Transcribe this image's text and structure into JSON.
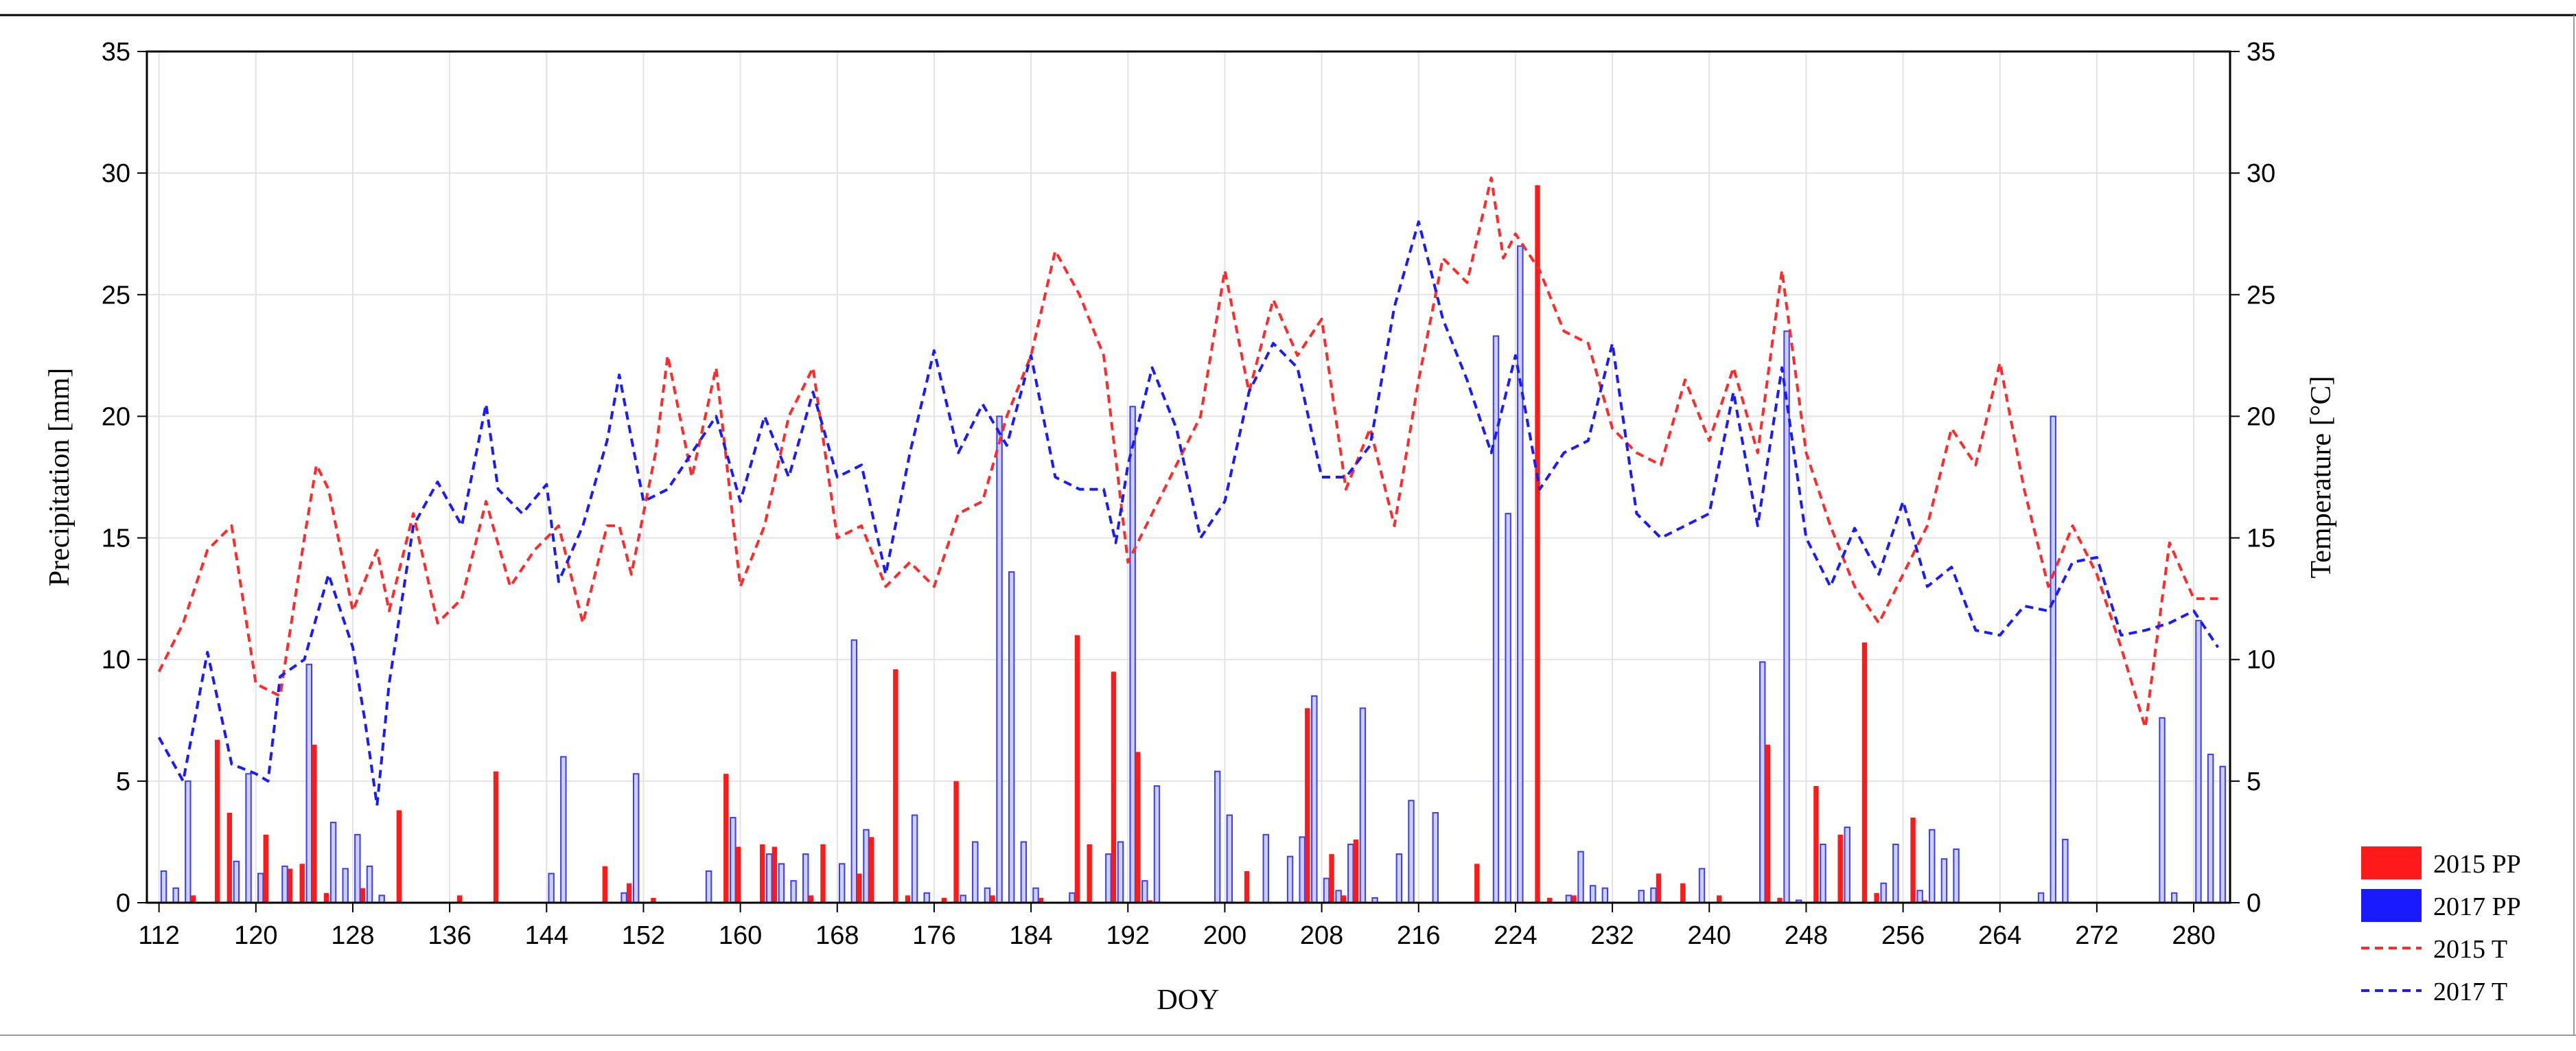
{
  "chart_data": {
    "type": "bar+line",
    "title": "",
    "xlabel": "DOY",
    "ylabel": "Precipitation [mm]",
    "y2label": "Temperature  [°C]",
    "xlim": [
      111,
      283
    ],
    "ylim": [
      0,
      35
    ],
    "y2lim": [
      0,
      35
    ],
    "xticks": [
      112,
      120,
      128,
      136,
      144,
      152,
      160,
      168,
      176,
      184,
      192,
      200,
      208,
      216,
      224,
      232,
      240,
      248,
      256,
      264,
      272,
      280
    ],
    "yticks": [
      0,
      5,
      10,
      15,
      20,
      25,
      30,
      35
    ],
    "grid": true,
    "legend_position": "bottom-right outside",
    "colors": {
      "pp2015": "#ff1a1a",
      "pp2017_fill": "#cdd0ff",
      "pp2017_stroke": "#3b3bff",
      "t2015": "#ff2a2a",
      "t2017": "#1a1aff",
      "grid": "#e3e3e3"
    },
    "series": [
      {
        "name": "2015 PP",
        "kind": "bar",
        "x": [
          115,
          117,
          118,
          121,
          123,
          124,
          125,
          126,
          129,
          132,
          137,
          140,
          149,
          151,
          153,
          159,
          160,
          162,
          163,
          166,
          167,
          170,
          171,
          173,
          174,
          177,
          178,
          181,
          185,
          188,
          189,
          191,
          193,
          194,
          202,
          207,
          209,
          210,
          211,
          221,
          226,
          227,
          229,
          236,
          238,
          241,
          245,
          246,
          249,
          251,
          253,
          254,
          257,
          258
        ],
        "values": [
          0.3,
          6.7,
          3.7,
          2.8,
          1.4,
          1.6,
          6.5,
          0.4,
          0.6,
          3.8,
          0.3,
          5.4,
          1.5,
          0.8,
          0.2,
          5.3,
          2.3,
          2.4,
          2.3,
          0.3,
          2.4,
          1.2,
          2.7,
          9.6,
          0.3,
          0.2,
          5.0,
          0.3,
          0.2,
          11.0,
          2.4,
          9.5,
          6.2,
          0.1,
          1.3,
          8.0,
          2.0,
          0.3,
          2.6,
          1.6,
          29.5,
          0.2,
          0.3,
          1.2,
          0.8,
          0.3,
          6.5,
          0.2,
          4.8,
          2.8,
          10.7,
          0.4,
          3.5,
          0.1
        ]
      },
      {
        "name": "2017 PP",
        "kind": "bar",
        "x": [
          112,
          113,
          114,
          118,
          119,
          120,
          122,
          124,
          126,
          127,
          128,
          129,
          130,
          144,
          145,
          150,
          151,
          157,
          159,
          162,
          163,
          164,
          165,
          168,
          169,
          170,
          174,
          175,
          178,
          179,
          180,
          181,
          182,
          183,
          184,
          187,
          190,
          191,
          192,
          193,
          194,
          199,
          200,
          203,
          205,
          206,
          207,
          208,
          209,
          210,
          211,
          212,
          214,
          215,
          217,
          222,
          223,
          224,
          228,
          229,
          230,
          231,
          234,
          235,
          239,
          244,
          246,
          247,
          249,
          251,
          254,
          255,
          257,
          258,
          259,
          260,
          267,
          268,
          269,
          277,
          278,
          280,
          281,
          282
        ],
        "values": [
          1.3,
          0.6,
          5.0,
          1.7,
          5.3,
          1.2,
          1.5,
          9.8,
          3.3,
          1.4,
          2.8,
          1.5,
          0.3,
          1.2,
          6.0,
          0.4,
          5.3,
          1.3,
          3.5,
          2.0,
          1.6,
          0.9,
          2.0,
          1.6,
          10.8,
          3.0,
          3.6,
          0.4,
          0.3,
          2.5,
          0.6,
          20.0,
          13.6,
          2.5,
          0.6,
          0.4,
          2.0,
          2.5,
          20.4,
          0.9,
          4.8,
          5.4,
          3.6,
          2.8,
          1.9,
          2.7,
          8.5,
          1.0,
          0.5,
          2.4,
          8.0,
          0.2,
          2.0,
          4.2,
          3.7,
          23.3,
          16.0,
          27.0,
          0.3,
          2.1,
          0.7,
          0.6,
          0.5,
          0.6,
          1.4,
          9.9,
          23.5,
          0.1,
          2.4,
          3.1,
          0.8,
          2.4,
          0.5,
          3.0,
          1.8,
          2.2,
          0.4,
          20.0,
          2.6,
          7.6,
          0.4,
          11.6,
          6.1,
          5.6
        ]
      },
      {
        "name": "2015 T",
        "kind": "line",
        "style": "dashed",
        "x": [
          112,
          114,
          116,
          118,
          120,
          122,
          124,
          125,
          126,
          128,
          130,
          131,
          133,
          135,
          137,
          139,
          141,
          143,
          145,
          147,
          149,
          150,
          151,
          153,
          154,
          156,
          158,
          160,
          162,
          164,
          166,
          168,
          170,
          172,
          174,
          176,
          178,
          180,
          182,
          184,
          186,
          188,
          190,
          192,
          194,
          196,
          198,
          200,
          202,
          204,
          206,
          208,
          210,
          212,
          214,
          216,
          218,
          220,
          222,
          223,
          224,
          226,
          228,
          230,
          232,
          234,
          236,
          238,
          240,
          242,
          244,
          246,
          248,
          250,
          252,
          254,
          256,
          258,
          260,
          262,
          264,
          266,
          268,
          270,
          272,
          274,
          276,
          278,
          280,
          282
        ],
        "values": [
          9.5,
          11.5,
          14.5,
          15.5,
          9.0,
          8.5,
          15.0,
          18.0,
          17.0,
          12.0,
          14.5,
          12.0,
          16.0,
          11.5,
          12.5,
          16.5,
          13.0,
          14.5,
          15.5,
          11.5,
          15.5,
          15.5,
          13.5,
          18.5,
          22.5,
          17.5,
          22.0,
          13.0,
          15.5,
          20.0,
          22.0,
          15.0,
          15.5,
          13.0,
          14.0,
          13.0,
          16.0,
          16.5,
          20.0,
          22.5,
          26.8,
          25.0,
          22.5,
          14.0,
          16.0,
          18.0,
          20.0,
          26.0,
          21.0,
          24.8,
          22.5,
          24.0,
          17.0,
          19.5,
          15.5,
          21.5,
          26.5,
          25.5,
          29.8,
          26.5,
          27.5,
          26.0,
          23.5,
          23.0,
          19.5,
          18.5,
          18.0,
          21.5,
          19.0,
          22.0,
          18.5,
          26.0,
          18.5,
          15.5,
          13.0,
          11.5,
          13.5,
          15.5,
          19.5,
          18.0,
          22.2,
          17.0,
          13.0,
          15.5,
          13.5,
          10.5,
          7.2,
          14.8,
          12.5,
          12.5
        ]
      },
      {
        "name": "2017 T",
        "kind": "line",
        "style": "dashed",
        "x": [
          112,
          114,
          116,
          118,
          119,
          120,
          121,
          122,
          124,
          126,
          127,
          128,
          129,
          130,
          131,
          133,
          135,
          137,
          139,
          140,
          142,
          144,
          145,
          147,
          149,
          150,
          152,
          154,
          156,
          158,
          160,
          162,
          164,
          166,
          168,
          170,
          172,
          174,
          176,
          178,
          180,
          182,
          184,
          186,
          188,
          190,
          191,
          192,
          194,
          196,
          198,
          200,
          202,
          204,
          206,
          208,
          210,
          212,
          214,
          216,
          218,
          220,
          222,
          224,
          226,
          228,
          230,
          232,
          234,
          236,
          238,
          240,
          242,
          244,
          246,
          248,
          250,
          252,
          254,
          256,
          258,
          260,
          262,
          264,
          266,
          268,
          270,
          272,
          274,
          276,
          278,
          280,
          282
        ],
        "values": [
          6.8,
          5.0,
          10.3,
          5.7,
          5.5,
          5.3,
          5.0,
          9.3,
          10.0,
          13.5,
          12.0,
          10.5,
          7.5,
          4.0,
          9.0,
          15.5,
          17.3,
          15.5,
          20.5,
          17.0,
          16.0,
          17.2,
          13.2,
          15.5,
          19.0,
          21.7,
          16.5,
          17.0,
          18.5,
          20.0,
          16.5,
          20.0,
          17.5,
          21.0,
          17.5,
          18.0,
          13.5,
          18.5,
          22.7,
          18.5,
          20.5,
          18.8,
          22.5,
          17.5,
          17.0,
          17.0,
          14.8,
          18.0,
          22.0,
          19.5,
          15.0,
          16.5,
          21.0,
          23.0,
          22.0,
          17.5,
          17.5,
          18.8,
          24.5,
          28.0,
          24.0,
          21.5,
          18.5,
          22.5,
          17.0,
          18.5,
          19.0,
          23.0,
          16.0,
          15.0,
          15.5,
          16.0,
          21.0,
          15.5,
          22.0,
          15.0,
          13.0,
          15.4,
          13.5,
          16.5,
          13.0,
          13.8,
          11.2,
          11.0,
          12.2,
          12.0,
          14.0,
          14.2,
          11.0,
          11.2,
          11.5,
          12.0,
          10.5
        ]
      }
    ]
  }
}
